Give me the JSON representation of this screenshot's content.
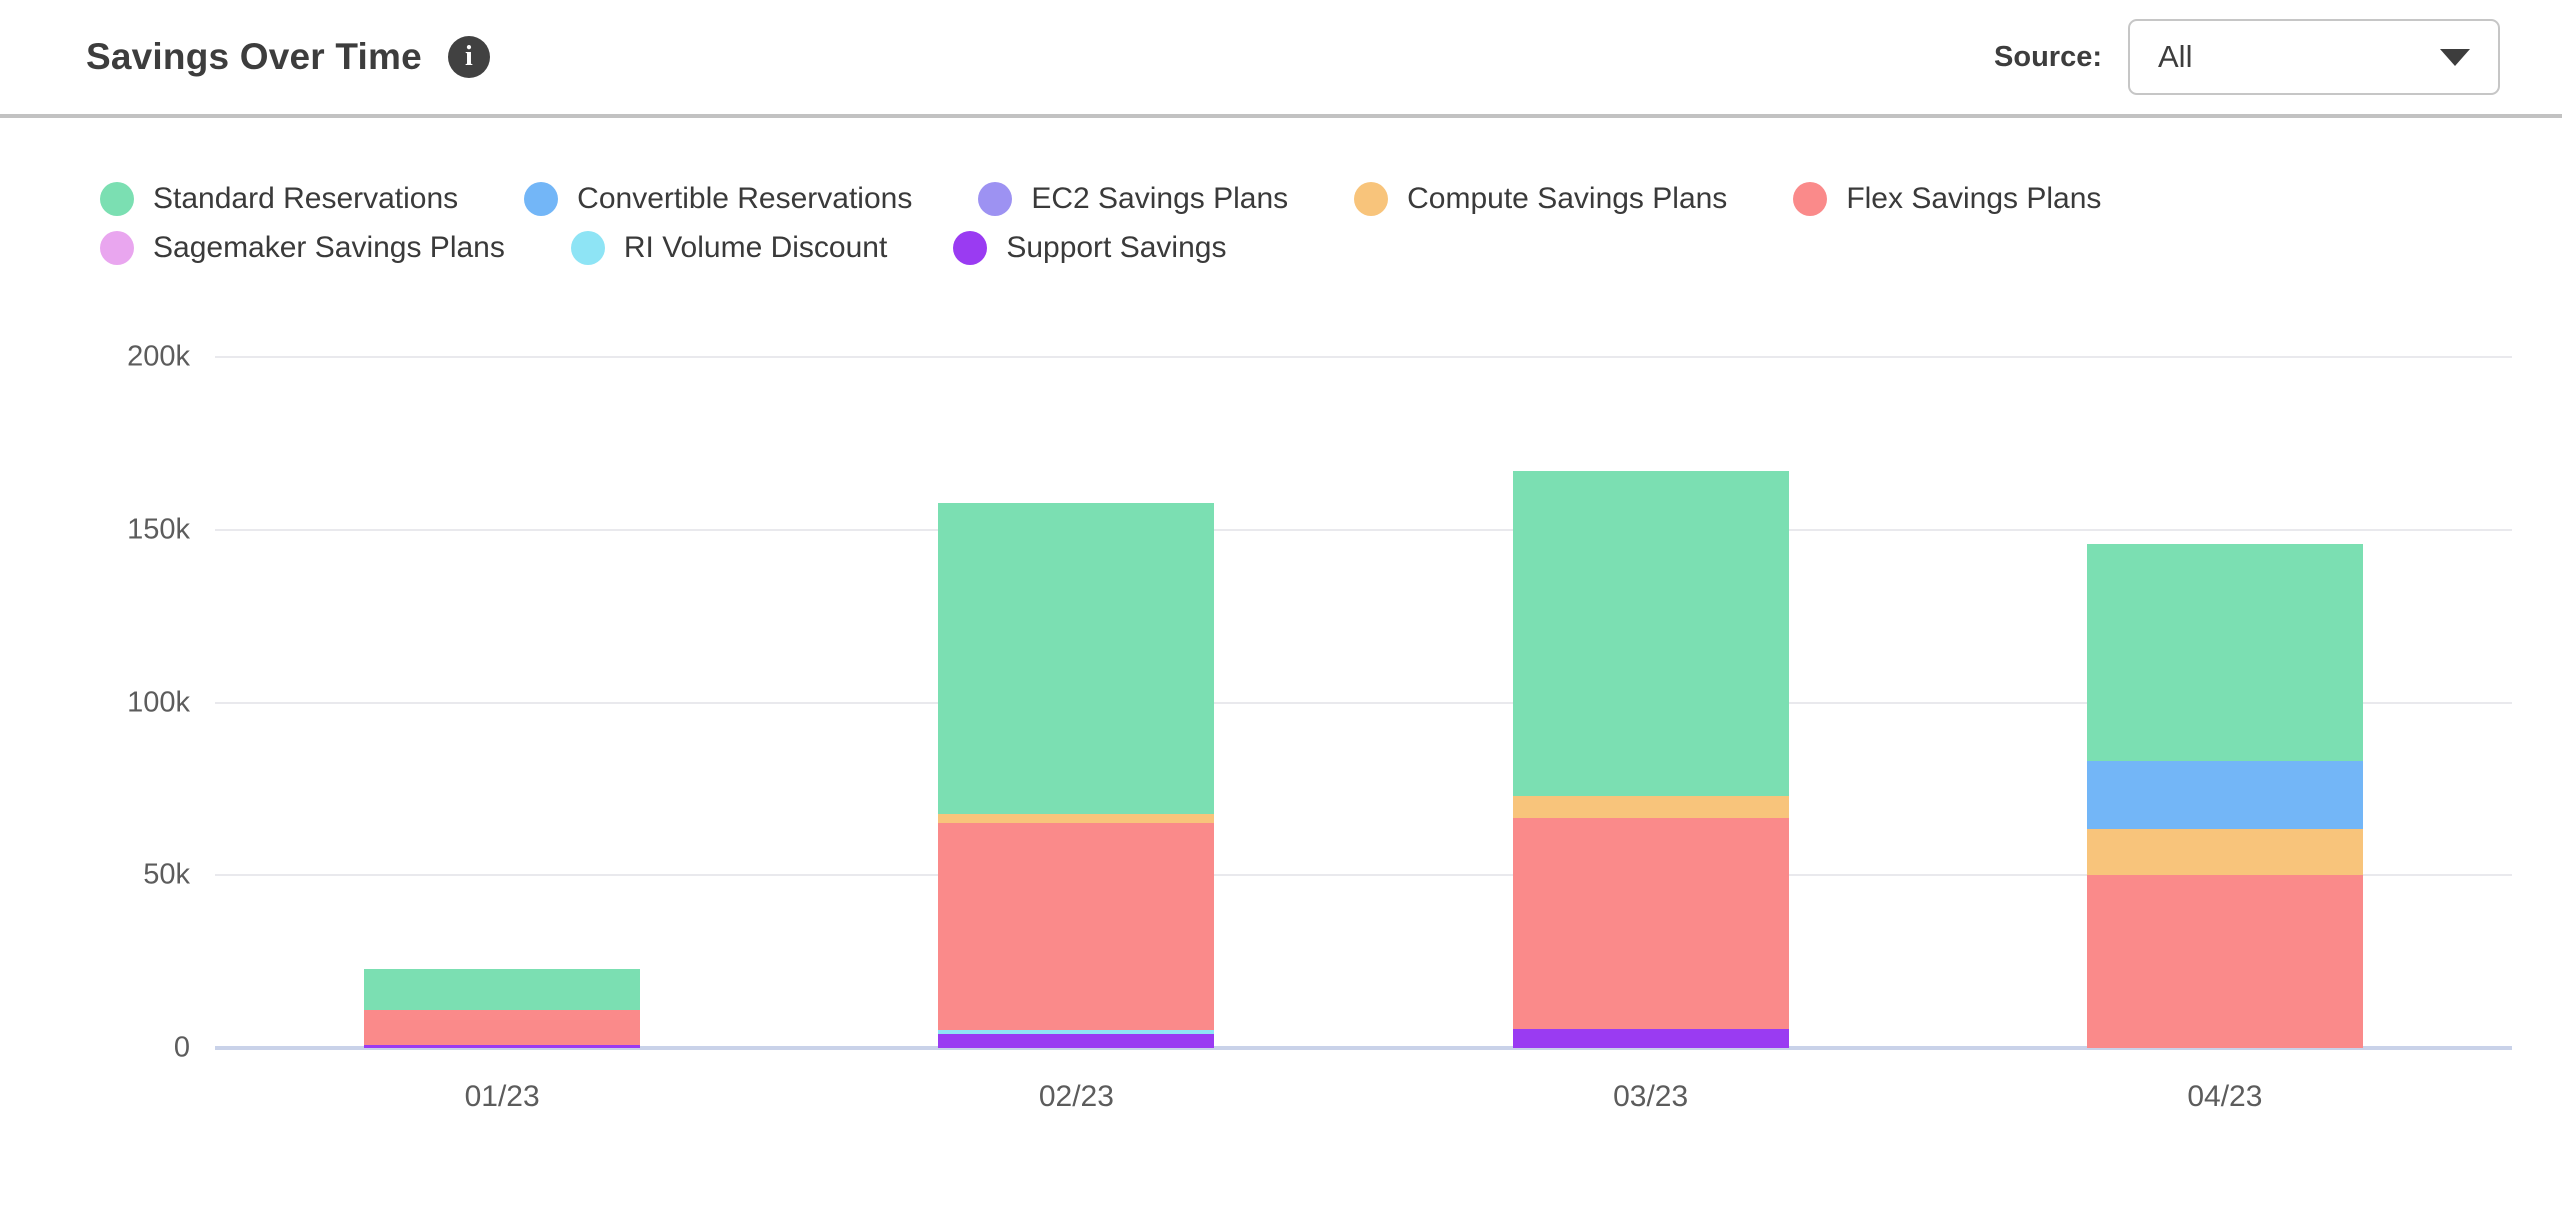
{
  "header": {
    "title": "Savings Over Time",
    "info_glyph": "i",
    "source_label": "Source:",
    "source_value": "All"
  },
  "chart_data": {
    "type": "bar",
    "stacked": true,
    "title": "Savings Over Time",
    "categories": [
      "01/23",
      "02/23",
      "03/23",
      "04/23"
    ],
    "series": [
      {
        "name": "Standard Reservations",
        "color": "#7bdfb2",
        "values": [
          12,
          90,
          94,
          63
        ]
      },
      {
        "name": "Convertible Reservations",
        "color": "#73b6f7",
        "values": [
          0,
          0,
          0,
          19.5
        ]
      },
      {
        "name": "EC2 Savings Plans",
        "color": "#9d92f2",
        "values": [
          0,
          0,
          0,
          0
        ]
      },
      {
        "name": "Compute Savings Plans",
        "color": "#f8c47b",
        "values": [
          0,
          2.5,
          6.5,
          13.5
        ]
      },
      {
        "name": "Flex Savings Plans",
        "color": "#fa8a8a",
        "values": [
          10,
          60,
          61,
          50
        ]
      },
      {
        "name": "Sagemaker Savings Plans",
        "color": "#e9a6ef",
        "values": [
          0,
          0,
          0,
          0
        ]
      },
      {
        "name": "RI Volume Discount",
        "color": "#8ee4f5",
        "values": [
          0,
          1.2,
          0,
          0
        ]
      },
      {
        "name": "Support Savings",
        "color": "#9a3bf2",
        "values": [
          1,
          4,
          5.5,
          0
        ]
      }
    ],
    "stack_order": "reverse-of-legend (Support Savings at bottom, Standard Reservations on top)",
    "legend_rows": [
      5,
      3
    ],
    "legend_position": "top-left",
    "unit": "thousands",
    "yticks": [
      {
        "value": 0,
        "label": "0"
      },
      {
        "value": 50,
        "label": "50k"
      },
      {
        "value": 100,
        "label": "100k"
      },
      {
        "value": 150,
        "label": "150k"
      },
      {
        "value": 200,
        "label": "200k"
      }
    ],
    "ylim": [
      0,
      200
    ],
    "grid": true
  }
}
